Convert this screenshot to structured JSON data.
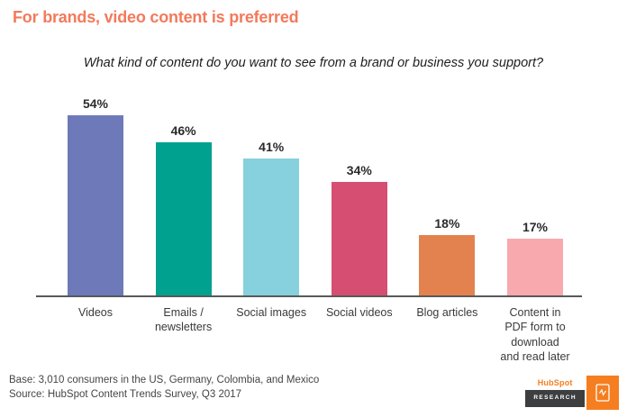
{
  "headline": "For brands, video content is preferred",
  "chart_data": {
    "type": "bar",
    "title": "What kind of content do you want to see from a brand or business you support?",
    "categories": [
      "Videos",
      "Emails /\nnewsletters",
      "Social images",
      "Social videos",
      "Blog articles",
      "Content in\nPDF form to\ndownload\nand read later"
    ],
    "values": [
      54,
      46,
      41,
      34,
      18,
      17
    ],
    "value_labels": [
      "54%",
      "46%",
      "41%",
      "34%",
      "18%",
      "17%"
    ],
    "colors": [
      "#6d79b9",
      "#00a18e",
      "#87d0dd",
      "#d64e72",
      "#e3824f",
      "#f7a9ae"
    ],
    "xlabel": "",
    "ylabel": "",
    "ylim": [
      0,
      60
    ],
    "grid": false,
    "legend": "none",
    "value_label_position": "above-bar",
    "axis_color": "#58595b"
  },
  "footer": {
    "base": "Base: 3,010 consumers in the US, Germany, Colombia, and Mexico",
    "source": "Source: HubSpot Content Trends Survey, Q3 2017"
  },
  "logo": {
    "brand": "HubSpot",
    "sub": "RESEARCH",
    "accent_color": "#f57e20"
  },
  "colors": {
    "headline": "#f4795b",
    "background": "#ffffff"
  }
}
